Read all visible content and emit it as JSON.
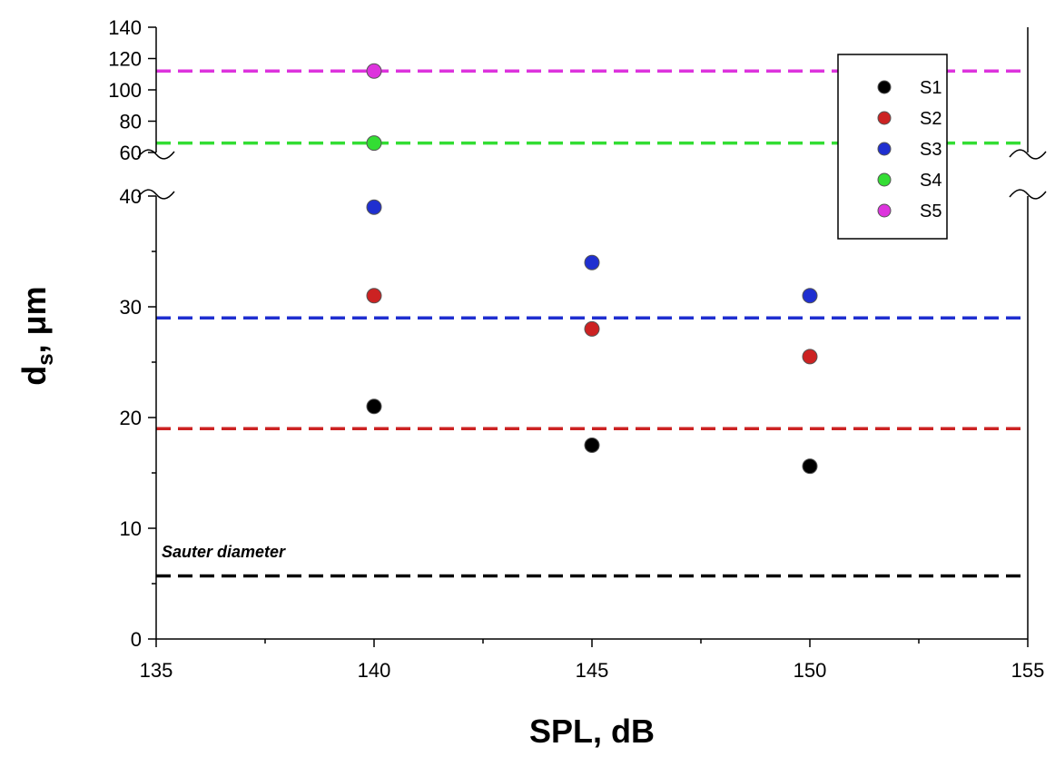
{
  "chart_data": {
    "type": "scatter",
    "xlabel": "SPL, dB",
    "ylabel_main": "d",
    "ylabel_sub": "s",
    "ylabel_rest": ", μm",
    "x_ticks": [
      "135",
      "140",
      "145",
      "150",
      "155"
    ],
    "xlim": [
      135,
      155
    ],
    "y_lower_ticks": [
      "0",
      "10",
      "20",
      "30",
      "40"
    ],
    "y_lower_lim": [
      0,
      40
    ],
    "y_upper_ticks": [
      "60",
      "80",
      "100",
      "120",
      "140"
    ],
    "y_upper_lim": [
      60,
      140
    ],
    "axis_break": true,
    "legend_position": "top-right",
    "series": [
      {
        "name": "S1",
        "color": "#000000",
        "points": [
          [
            140,
            21
          ],
          [
            145,
            17.5
          ],
          [
            150,
            15.6
          ]
        ],
        "reference": 5.7
      },
      {
        "name": "S2",
        "color": "#cc2222",
        "points": [
          [
            140,
            31
          ],
          [
            145,
            28
          ],
          [
            150,
            25.5
          ]
        ],
        "reference": 19
      },
      {
        "name": "S3",
        "color": "#1f2fd0",
        "points": [
          [
            140,
            39
          ],
          [
            145,
            34
          ],
          [
            150,
            31
          ]
        ],
        "reference": 29
      },
      {
        "name": "S4",
        "color": "#33dd33",
        "points": [
          [
            140,
            66
          ]
        ],
        "reference": 66
      },
      {
        "name": "S5",
        "color": "#dd33dd",
        "points": [
          [
            140,
            112
          ]
        ],
        "reference": 112
      }
    ],
    "annotations": [
      {
        "text": "Sauter diameter"
      }
    ]
  }
}
